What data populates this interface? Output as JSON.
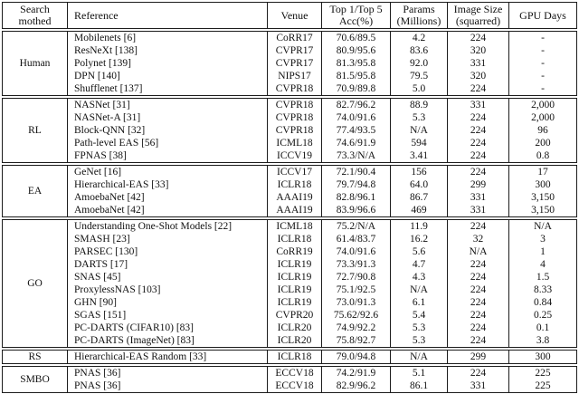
{
  "table": {
    "columns": [
      {
        "key": "method",
        "label": "Search mothed"
      },
      {
        "key": "reference",
        "label": "Reference"
      },
      {
        "key": "venue",
        "label": "Venue"
      },
      {
        "key": "acc",
        "label": "Top 1/Top 5\nAcc(%)"
      },
      {
        "key": "params",
        "label": "Params\n(Millions)"
      },
      {
        "key": "size",
        "label": "Image Size\n(squarred)"
      },
      {
        "key": "gpu",
        "label": "GPU Days"
      }
    ],
    "groups": [
      {
        "method": "Human",
        "rows": [
          {
            "reference": "Mobilenets [6]",
            "venue": "CoRR17",
            "acc": "70.6/89.5",
            "params": "4.2",
            "size": "224",
            "gpu": "-"
          },
          {
            "reference": "ResNeXt [138]",
            "venue": "CVPR17",
            "acc": "80.9/95.6",
            "params": "83.6",
            "size": "320",
            "gpu": "-"
          },
          {
            "reference": "Polynet [139]",
            "venue": "CVPR17",
            "acc": "81.3/95.8",
            "params": "92.0",
            "size": "331",
            "gpu": "-"
          },
          {
            "reference": "DPN [140]",
            "venue": "NIPS17",
            "acc": "81.5/95.8",
            "params": "79.5",
            "size": "320",
            "gpu": "-"
          },
          {
            "reference": "Shufflenet [137]",
            "venue": "CVPR18",
            "acc": "70.9/89.8",
            "params": "5.0",
            "size": "224",
            "gpu": "-"
          }
        ]
      },
      {
        "method": "RL",
        "rows": [
          {
            "reference": "NASNet [31]",
            "venue": "CVPR18",
            "acc": "82.7/96.2",
            "params": "88.9",
            "size": "331",
            "gpu": "2,000"
          },
          {
            "reference": "NASNet-A [31]",
            "venue": "CVPR18",
            "acc": "74.0/91.6",
            "params": "5.3",
            "size": "224",
            "gpu": "2,000"
          },
          {
            "reference": "Block-QNN [32]",
            "venue": "CVPR18",
            "acc": "77.4/93.5",
            "params": "N/A",
            "size": "224",
            "gpu": "96"
          },
          {
            "reference": "Path-level EAS [56]",
            "venue": "ICML18",
            "acc": "74.6/91.9",
            "params": "594",
            "size": "224",
            "gpu": "200"
          },
          {
            "reference": "FPNAS [38]",
            "venue": "ICCV19",
            "acc": "73.3/N/A",
            "params": "3.41",
            "size": "224",
            "gpu": "0.8"
          }
        ]
      },
      {
        "method": "EA",
        "rows": [
          {
            "reference": "GeNet [16]",
            "venue": "ICCV17",
            "acc": "72.1/90.4",
            "params": "156",
            "size": "224",
            "gpu": "17"
          },
          {
            "reference": "Hierarchical-EAS [33]",
            "venue": "ICLR18",
            "acc": "79.7/94.8",
            "params": "64.0",
            "size": "299",
            "gpu": "300"
          },
          {
            "reference": "AmoebaNet [42]",
            "venue": "AAAI19",
            "acc": "82.8/96.1",
            "params": "86.7",
            "size": "331",
            "gpu": "3,150"
          },
          {
            "reference": "AmoebaNet [42]",
            "venue": "AAAI19",
            "acc": "83.9/96.6",
            "params": "469",
            "size": "331",
            "gpu": "3,150"
          }
        ]
      },
      {
        "method": "GO",
        "rows": [
          {
            "reference": "Understanding One-Shot Models [22]",
            "venue": "ICML18",
            "acc": "75.2/N/A",
            "params": "11.9",
            "size": "224",
            "gpu": "N/A"
          },
          {
            "reference": "SMASH [23]",
            "venue": "ICLR18",
            "acc": "61.4/83.7",
            "params": "16.2",
            "size": "32",
            "gpu": "3"
          },
          {
            "reference": "PARSEC [130]",
            "venue": "CoRR19",
            "acc": "74.0/91.6",
            "params": "5.6",
            "size": "N/A",
            "gpu": "1"
          },
          {
            "reference": "DARTS [17]",
            "venue": "ICLR19",
            "acc": "73.3/91.3",
            "params": "4.7",
            "size": "224",
            "gpu": "4"
          },
          {
            "reference": "SNAS [45]",
            "venue": "ICLR19",
            "acc": "72.7/90.8",
            "params": "4.3",
            "size": "224",
            "gpu": "1.5"
          },
          {
            "reference": "ProxylessNAS [103]",
            "venue": "ICLR19",
            "acc": "75.1/92.5",
            "params": "N/A",
            "size": "224",
            "gpu": "8.33"
          },
          {
            "reference": "GHN [90]",
            "venue": "ICLR19",
            "acc": "73.0/91.3",
            "params": "6.1",
            "size": "224",
            "gpu": "0.84"
          },
          {
            "reference": "SGAS [151]",
            "venue": "CVPR20",
            "acc": "75.62/92.6",
            "params": "5.4",
            "size": "224",
            "gpu": "0.25"
          },
          {
            "reference": "PC-DARTS (CIFAR10) [83]",
            "venue": "ICLR20",
            "acc": "74.9/92.2",
            "params": "5.3",
            "size": "224",
            "gpu": "0.1"
          },
          {
            "reference": "PC-DARTS (ImageNet) [83]",
            "venue": "ICLR20",
            "acc": "75.8/92.7",
            "params": "5.3",
            "size": "224",
            "gpu": "3.8"
          }
        ]
      },
      {
        "method": "RS",
        "rows": [
          {
            "reference": "Hierarchical-EAS Random [33]",
            "venue": "ICLR18",
            "acc": "79.0/94.8",
            "params": "N/A",
            "size": "299",
            "gpu": "300"
          }
        ]
      },
      {
        "method": "SMBO",
        "rows": [
          {
            "reference": "PNAS [36]",
            "venue": "ECCV18",
            "acc": "74.2/91.9",
            "params": "5.1",
            "size": "224",
            "gpu": "225"
          },
          {
            "reference": "PNAS [36]",
            "venue": "ECCV18",
            "acc": "82.9/96.2",
            "params": "86.1",
            "size": "331",
            "gpu": "225"
          }
        ]
      }
    ]
  }
}
